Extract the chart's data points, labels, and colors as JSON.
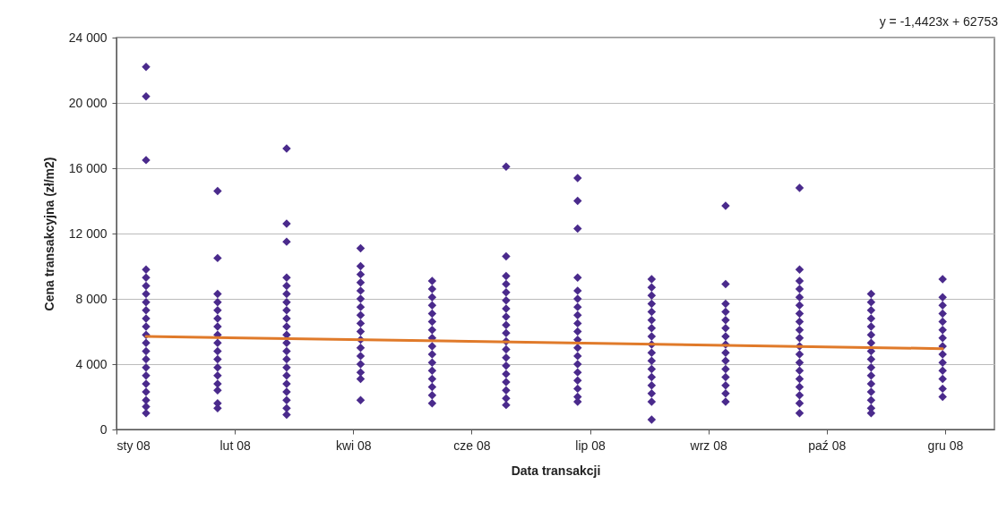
{
  "chart_data": {
    "type": "scatter",
    "xlabel": "Data transakcji",
    "ylabel": "Cena transakcyjna (zł/m2)",
    "annotations": [
      "y = -1,4423x + 62753"
    ],
    "xlim": [
      "2008-01-10",
      "2008-12-31"
    ],
    "xticks": [
      {
        "value": "2008-01-10",
        "label": "sty 08"
      },
      {
        "value": "2008-02-27",
        "label": "lut 08"
      },
      {
        "value": "2008-04-15",
        "label": "kwi 08"
      },
      {
        "value": "2008-06-02",
        "label": "cze 08"
      },
      {
        "value": "2008-07-20",
        "label": "lip 08"
      },
      {
        "value": "2008-09-06",
        "label": "wrz 08"
      },
      {
        "value": "2008-10-24",
        "label": "paź 08"
      },
      {
        "value": "2008-12-11",
        "label": "gru 08"
      }
    ],
    "ylim": [
      0,
      24000
    ],
    "yticks": [
      {
        "value": 0,
        "label": "0"
      },
      {
        "value": 4000,
        "label": "4 000"
      },
      {
        "value": 8000,
        "label": "8 000"
      },
      {
        "value": 12000,
        "label": "12 000"
      },
      {
        "value": 16000,
        "label": "16 000"
      },
      {
        "value": 20000,
        "label": "20 000"
      },
      {
        "value": 24000,
        "label": "24 000"
      }
    ],
    "grid": "y",
    "series": [
      {
        "color": "#4a2a8c",
        "marker": "diamond",
        "x": [
          "2008-01-22",
          "2008-01-22",
          "2008-01-22",
          "2008-01-22",
          "2008-01-22",
          "2008-01-22",
          "2008-01-22",
          "2008-01-22",
          "2008-01-22",
          "2008-01-22",
          "2008-01-22",
          "2008-01-22",
          "2008-01-22",
          "2008-01-22",
          "2008-01-22",
          "2008-01-22",
          "2008-01-22",
          "2008-01-22",
          "2008-01-22",
          "2008-01-22",
          "2008-01-22",
          "2008-01-22",
          "2008-02-20",
          "2008-02-20",
          "2008-02-20",
          "2008-02-20",
          "2008-02-20",
          "2008-02-20",
          "2008-02-20",
          "2008-02-20",
          "2008-02-20",
          "2008-02-20",
          "2008-02-20",
          "2008-02-20",
          "2008-02-20",
          "2008-02-20",
          "2008-02-20",
          "2008-02-20",
          "2008-02-20",
          "2008-03-19",
          "2008-03-19",
          "2008-03-19",
          "2008-03-19",
          "2008-03-19",
          "2008-03-19",
          "2008-03-19",
          "2008-03-19",
          "2008-03-19",
          "2008-03-19",
          "2008-03-19",
          "2008-03-19",
          "2008-03-19",
          "2008-03-19",
          "2008-03-19",
          "2008-03-19",
          "2008-03-19",
          "2008-03-19",
          "2008-03-19",
          "2008-03-19",
          "2008-03-19",
          "2008-04-18",
          "2008-04-18",
          "2008-04-18",
          "2008-04-18",
          "2008-04-18",
          "2008-04-18",
          "2008-04-18",
          "2008-04-18",
          "2008-04-18",
          "2008-04-18",
          "2008-04-18",
          "2008-04-18",
          "2008-04-18",
          "2008-04-18",
          "2008-04-18",
          "2008-04-18",
          "2008-04-18",
          "2008-05-17",
          "2008-05-17",
          "2008-05-17",
          "2008-05-17",
          "2008-05-17",
          "2008-05-17",
          "2008-05-17",
          "2008-05-17",
          "2008-05-17",
          "2008-05-17",
          "2008-05-17",
          "2008-05-17",
          "2008-05-17",
          "2008-05-17",
          "2008-05-17",
          "2008-05-17",
          "2008-06-16",
          "2008-06-16",
          "2008-06-16",
          "2008-06-16",
          "2008-06-16",
          "2008-06-16",
          "2008-06-16",
          "2008-06-16",
          "2008-06-16",
          "2008-06-16",
          "2008-06-16",
          "2008-06-16",
          "2008-06-16",
          "2008-06-16",
          "2008-06-16",
          "2008-06-16",
          "2008-06-16",
          "2008-06-16",
          "2008-06-16",
          "2008-07-15",
          "2008-07-15",
          "2008-07-15",
          "2008-07-15",
          "2008-07-15",
          "2008-07-15",
          "2008-07-15",
          "2008-07-15",
          "2008-07-15",
          "2008-07-15",
          "2008-07-15",
          "2008-07-15",
          "2008-07-15",
          "2008-07-15",
          "2008-07-15",
          "2008-07-15",
          "2008-07-15",
          "2008-07-15",
          "2008-07-15",
          "2008-08-14",
          "2008-08-14",
          "2008-08-14",
          "2008-08-14",
          "2008-08-14",
          "2008-08-14",
          "2008-08-14",
          "2008-08-14",
          "2008-08-14",
          "2008-08-14",
          "2008-08-14",
          "2008-08-14",
          "2008-08-14",
          "2008-08-14",
          "2008-08-14",
          "2008-08-14",
          "2008-08-14",
          "2008-09-13",
          "2008-09-13",
          "2008-09-13",
          "2008-09-13",
          "2008-09-13",
          "2008-09-13",
          "2008-09-13",
          "2008-09-13",
          "2008-09-13",
          "2008-09-13",
          "2008-09-13",
          "2008-09-13",
          "2008-09-13",
          "2008-09-13",
          "2008-09-13",
          "2008-10-13",
          "2008-10-13",
          "2008-10-13",
          "2008-10-13",
          "2008-10-13",
          "2008-10-13",
          "2008-10-13",
          "2008-10-13",
          "2008-10-13",
          "2008-10-13",
          "2008-10-13",
          "2008-10-13",
          "2008-10-13",
          "2008-10-13",
          "2008-10-13",
          "2008-10-13",
          "2008-10-13",
          "2008-10-13",
          "2008-10-13",
          "2008-11-11",
          "2008-11-11",
          "2008-11-11",
          "2008-11-11",
          "2008-11-11",
          "2008-11-11",
          "2008-11-11",
          "2008-11-11",
          "2008-11-11",
          "2008-11-11",
          "2008-11-11",
          "2008-11-11",
          "2008-11-11",
          "2008-11-11",
          "2008-11-11",
          "2008-11-11",
          "2008-12-10",
          "2008-12-10",
          "2008-12-10",
          "2008-12-10",
          "2008-12-10",
          "2008-12-10",
          "2008-12-10",
          "2008-12-10",
          "2008-12-10",
          "2008-12-10",
          "2008-12-10",
          "2008-12-10",
          "2008-12-10",
          "2008-12-10"
        ],
        "values": [
          22200,
          20400,
          16500,
          9800,
          9300,
          8800,
          8300,
          7800,
          7300,
          6800,
          6300,
          5800,
          5300,
          4800,
          4300,
          3800,
          3300,
          2800,
          2300,
          1800,
          1400,
          1000,
          14600,
          10500,
          8300,
          7800,
          7300,
          6800,
          6300,
          5800,
          5300,
          4800,
          4300,
          3800,
          3300,
          2800,
          2400,
          1600,
          1300,
          17200,
          12600,
          11500,
          9300,
          8800,
          8300,
          7800,
          7300,
          6800,
          6300,
          5800,
          5300,
          4800,
          4300,
          3800,
          3300,
          2800,
          2300,
          1800,
          1300,
          900,
          11100,
          10000,
          9500,
          9000,
          8500,
          8000,
          7500,
          7000,
          6500,
          6000,
          5500,
          5000,
          4500,
          4000,
          3500,
          3100,
          1800,
          9100,
          8600,
          8100,
          7600,
          7100,
          6600,
          6100,
          5600,
          5100,
          4600,
          4100,
          3600,
          3100,
          2600,
          2100,
          1600,
          16100,
          10600,
          9400,
          8900,
          8400,
          7900,
          7400,
          6900,
          6400,
          5900,
          5400,
          4900,
          4400,
          3900,
          3400,
          2900,
          2400,
          1900,
          1500,
          15400,
          14000,
          12300,
          9300,
          8500,
          8000,
          7500,
          7000,
          6500,
          6000,
          5500,
          5000,
          4500,
          4000,
          3500,
          3000,
          2500,
          2000,
          1700,
          9200,
          8700,
          8200,
          7700,
          7200,
          6700,
          6200,
          5700,
          5200,
          4700,
          4200,
          3700,
          3200,
          2700,
          2200,
          1700,
          600,
          13700,
          8900,
          7700,
          7200,
          6700,
          6200,
          5700,
          5200,
          4700,
          4200,
          3700,
          3200,
          2700,
          2200,
          1700,
          14800,
          9800,
          9100,
          8600,
          8100,
          7600,
          7100,
          6600,
          6100,
          5600,
          5100,
          4600,
          4100,
          3600,
          3100,
          2600,
          2100,
          1600,
          1000,
          8300,
          7800,
          7300,
          6800,
          6300,
          5800,
          5300,
          4800,
          4300,
          3800,
          3300,
          2800,
          2300,
          1800,
          1300,
          1000,
          9200,
          8100,
          7600,
          7100,
          6600,
          6100,
          5600,
          5100,
          4600,
          4100,
          3600,
          3100,
          2500,
          2000
        ]
      },
      {
        "type": "line",
        "color": "#e07a2a",
        "line_style": "solid",
        "marker": "none",
        "x": [
          "2008-01-22",
          "2008-12-10"
        ],
        "values": [
          5700,
          4950
        ]
      }
    ]
  }
}
